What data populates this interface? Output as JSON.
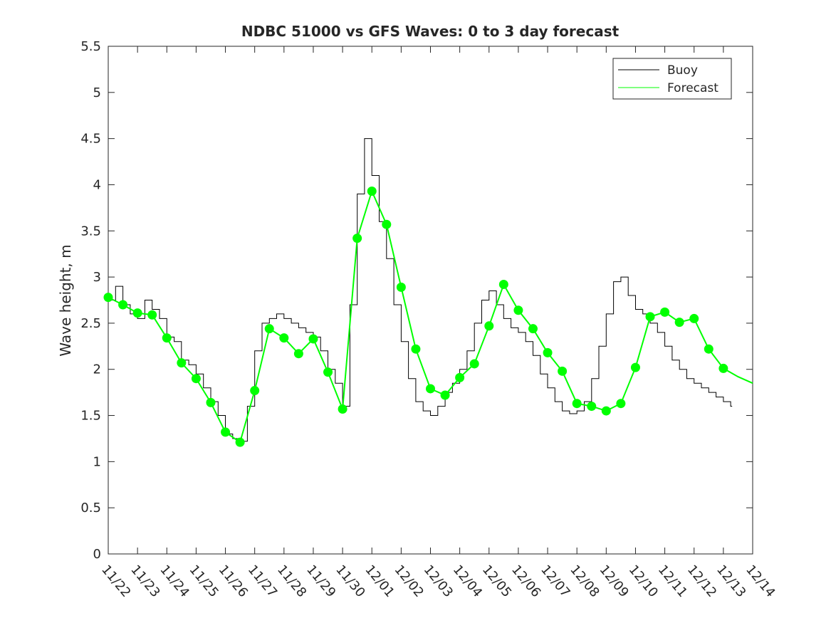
{
  "chart_data": {
    "type": "line",
    "title": "NDBC 51000 vs GFS Waves: 0 to 3 day forecast",
    "xlabel": "",
    "ylabel": "Wave height, m",
    "xlim": [
      "11/22",
      "12/14"
    ],
    "ylim": [
      0,
      5.5
    ],
    "yticks": [
      0,
      0.5,
      1,
      1.5,
      2,
      2.5,
      3,
      3.5,
      4,
      4.5,
      5,
      5.5
    ],
    "xtick_labels": [
      "11/22",
      "11/23",
      "11/24",
      "11/25",
      "11/26",
      "11/27",
      "11/28",
      "11/29",
      "11/30",
      "12/01",
      "12/02",
      "12/03",
      "12/04",
      "12/05",
      "12/06",
      "12/07",
      "12/08",
      "12/09",
      "12/10",
      "12/11",
      "12/12",
      "12/13",
      "12/14"
    ],
    "grid": false,
    "legend": "top-right",
    "colors": {
      "buoy": "#000000",
      "forecast": "#00ff00",
      "axis": "#262626"
    },
    "series": [
      {
        "name": "Buoy",
        "style": "line",
        "x_days": [
          0,
          0.25,
          0.5,
          0.75,
          1,
          1.25,
          1.5,
          1.75,
          2,
          2.25,
          2.5,
          2.75,
          3,
          3.25,
          3.5,
          3.75,
          4,
          4.25,
          4.5,
          4.75,
          5,
          5.25,
          5.5,
          5.75,
          6,
          6.25,
          6.5,
          6.75,
          7,
          7.25,
          7.5,
          7.75,
          8,
          8.25,
          8.5,
          8.75,
          9,
          9.25,
          9.5,
          9.75,
          10,
          10.25,
          10.5,
          10.75,
          11,
          11.25,
          11.5,
          11.75,
          12,
          12.25,
          12.5,
          12.75,
          13,
          13.25,
          13.5,
          13.75,
          14,
          14.25,
          14.5,
          14.75,
          15,
          15.25,
          15.5,
          15.75,
          16,
          16.25,
          16.5,
          16.75,
          17,
          17.25,
          17.5,
          17.75,
          18,
          18.25,
          18.5,
          18.75,
          19,
          19.25,
          19.5,
          19.75,
          20,
          20.25,
          20.5,
          20.75,
          21,
          21.25,
          21.3
        ],
        "y": [
          2.75,
          2.9,
          2.7,
          2.6,
          2.55,
          2.75,
          2.65,
          2.55,
          2.35,
          2.3,
          2.1,
          2.05,
          1.95,
          1.8,
          1.65,
          1.5,
          1.3,
          1.25,
          1.22,
          1.6,
          2.2,
          2.5,
          2.55,
          2.6,
          2.55,
          2.5,
          2.45,
          2.4,
          2.35,
          2.2,
          2.0,
          1.85,
          1.6,
          2.7,
          3.9,
          4.5,
          4.1,
          3.6,
          3.2,
          2.7,
          2.3,
          1.9,
          1.65,
          1.55,
          1.5,
          1.6,
          1.75,
          1.85,
          2.0,
          2.2,
          2.5,
          2.75,
          2.85,
          2.7,
          2.55,
          2.45,
          2.4,
          2.3,
          2.15,
          1.95,
          1.8,
          1.65,
          1.55,
          1.52,
          1.55,
          1.65,
          1.9,
          2.25,
          2.6,
          2.95,
          3.0,
          2.8,
          2.65,
          2.6,
          2.5,
          2.4,
          2.25,
          2.1,
          2.0,
          1.9,
          1.85,
          1.8,
          1.75,
          1.7,
          1.65,
          1.6,
          1.6
        ]
      },
      {
        "name": "Forecast",
        "style": "line-with-markers",
        "x_days": [
          0,
          0.5,
          1,
          1.5,
          2,
          2.5,
          3,
          3.5,
          4,
          4.5,
          5,
          5.5,
          6,
          6.5,
          7,
          7.5,
          8,
          8.5,
          9,
          9.5,
          10,
          10.5,
          11,
          11.5,
          12,
          12.5,
          13,
          13.5,
          14,
          14.5,
          15,
          15.5,
          16,
          16.5,
          17,
          17.5,
          18,
          18.5,
          19,
          19.5,
          20,
          20.5,
          21,
          21.5,
          22
        ],
        "y": [
          2.78,
          2.7,
          2.61,
          2.59,
          2.34,
          2.07,
          1.9,
          1.64,
          1.32,
          1.21,
          1.77,
          2.44,
          2.34,
          2.17,
          2.33,
          1.97,
          1.57,
          3.42,
          3.93,
          3.57,
          2.89,
          2.22,
          1.79,
          1.72,
          1.91,
          2.06,
          2.47,
          2.92,
          2.64,
          2.44,
          2.18,
          1.98,
          1.63,
          1.6,
          1.55,
          1.63,
          2.02,
          2.57,
          2.62,
          2.51,
          2.55,
          2.22,
          2.01,
          1.92,
          1.85
        ]
      }
    ]
  }
}
